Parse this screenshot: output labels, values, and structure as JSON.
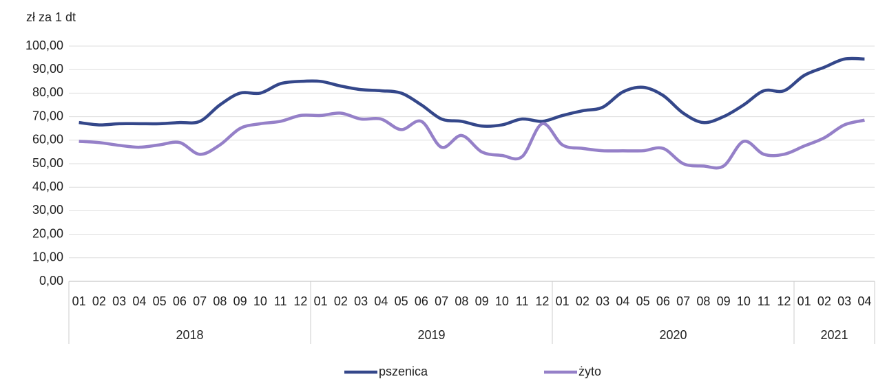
{
  "chart_data": {
    "type": "line",
    "y_axis_label": "zł za 1 dt",
    "categories": [
      "01",
      "02",
      "03",
      "04",
      "05",
      "06",
      "07",
      "08",
      "09",
      "10",
      "11",
      "12",
      "01",
      "02",
      "03",
      "04",
      "05",
      "06",
      "07",
      "08",
      "09",
      "10",
      "11",
      "12",
      "01",
      "02",
      "03",
      "04",
      "05",
      "06",
      "07",
      "08",
      "09",
      "10",
      "11",
      "12",
      "01",
      "02",
      "03",
      "04"
    ],
    "x_groups": [
      {
        "label": "2018",
        "count": 12
      },
      {
        "label": "2019",
        "count": 12
      },
      {
        "label": "2020",
        "count": 12
      },
      {
        "label": "2021",
        "count": 4
      }
    ],
    "series": [
      {
        "name": "pszenica",
        "color": "#34478a",
        "values": [
          67.5,
          66.5,
          67,
          67,
          67,
          67.5,
          68,
          75,
          80,
          80,
          84,
          85,
          85,
          83,
          81.5,
          81,
          80,
          75,
          69,
          68,
          66,
          66.5,
          69,
          68,
          70.5,
          72.5,
          74,
          80.5,
          82.5,
          79,
          71.5,
          67.5,
          70,
          75,
          81,
          81,
          87.5,
          91,
          94.5,
          94.5
        ]
      },
      {
        "name": "żyto",
        "color": "#9580c8",
        "values": [
          59.5,
          59,
          57.8,
          57,
          58,
          59,
          54,
          58,
          65,
          67,
          68,
          70.5,
          70.5,
          71.5,
          69,
          69,
          64.5,
          68,
          57,
          62,
          55,
          53.5,
          53,
          67,
          58,
          56.5,
          55.5,
          55.5,
          55.5,
          56.5,
          50,
          49,
          49,
          59.5,
          54,
          54,
          57.5,
          61,
          66.5,
          68.5
        ]
      }
    ],
    "ylim": [
      0,
      100
    ],
    "yticks": [
      {
        "value": 0,
        "label": "0,00"
      },
      {
        "value": 10,
        "label": "10,00"
      },
      {
        "value": 20,
        "label": "20,00"
      },
      {
        "value": 30,
        "label": "30,00"
      },
      {
        "value": 40,
        "label": "40,00"
      },
      {
        "value": 50,
        "label": "50,00"
      },
      {
        "value": 60,
        "label": "60,00"
      },
      {
        "value": 70,
        "label": "70,00"
      },
      {
        "value": 80,
        "label": "80,00"
      },
      {
        "value": 90,
        "label": "90,00"
      },
      {
        "value": 100,
        "label": "100,00"
      }
    ],
    "grid": true
  }
}
